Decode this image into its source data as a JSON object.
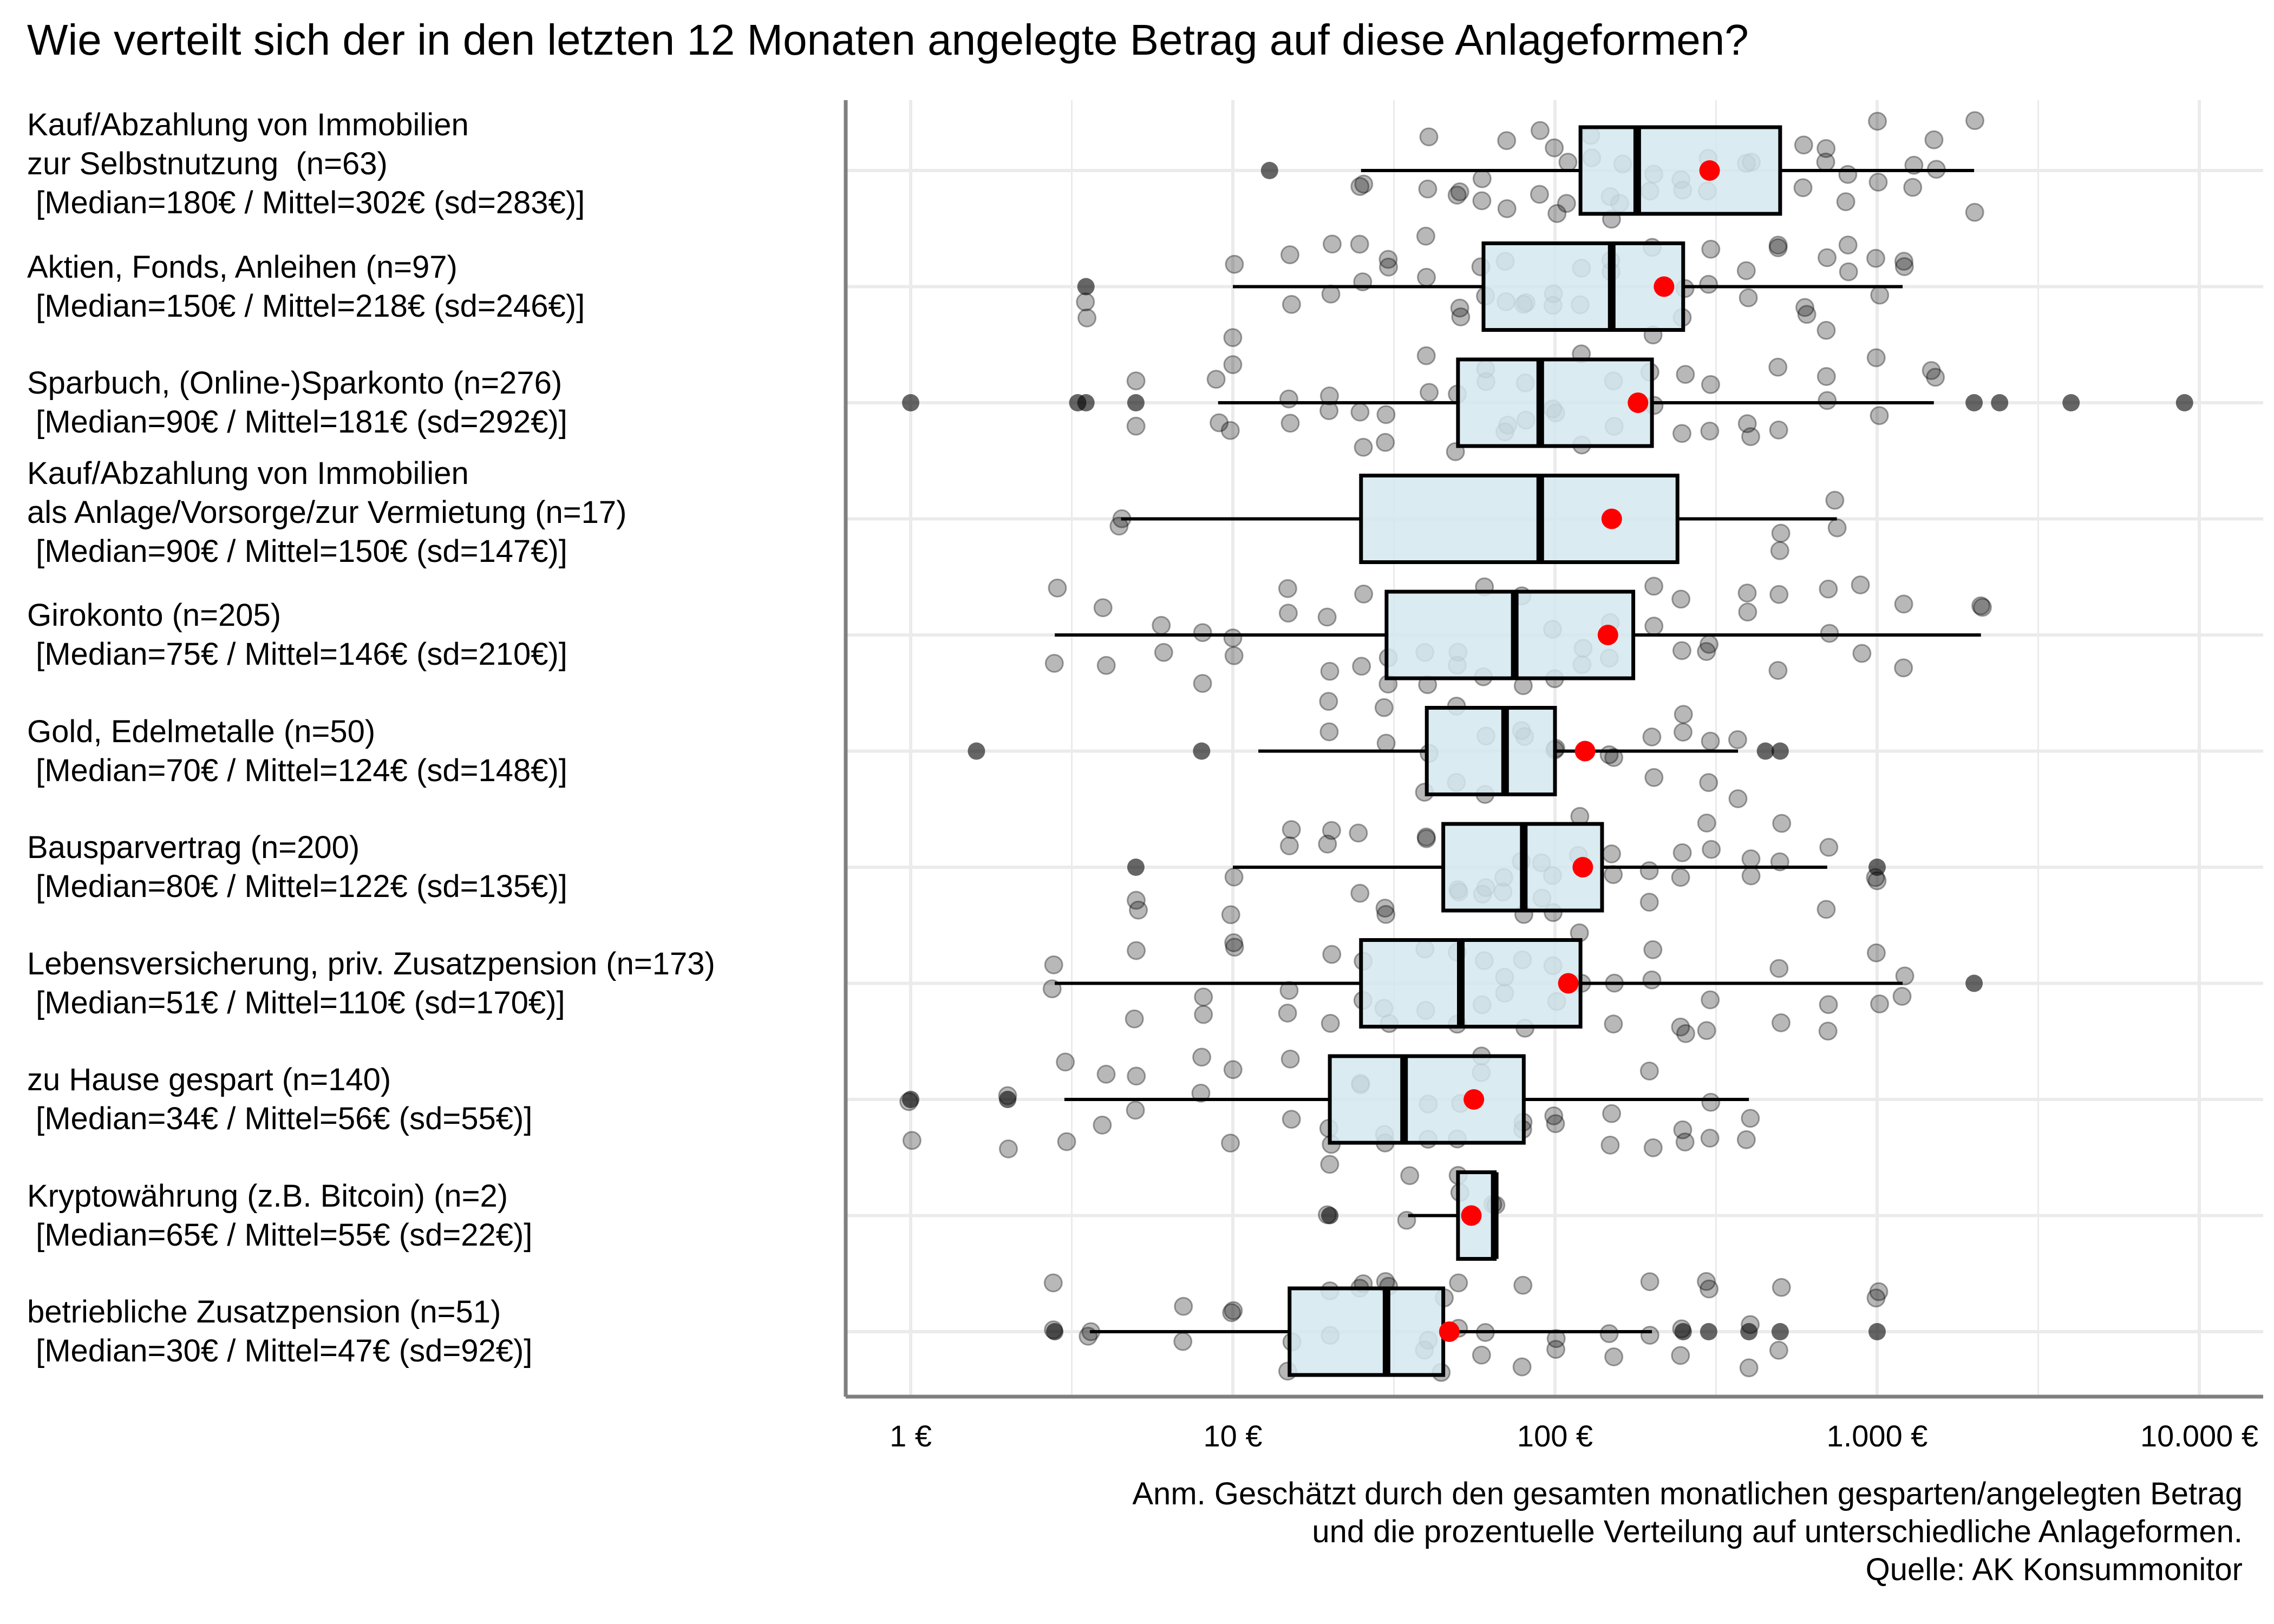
{
  "chart_data": {
    "type": "boxplot",
    "title": "Wie verteilt sich der in den letzten 12 Monaten angelegte Betrag auf diese Anlageformen?",
    "x_scale": "log",
    "x_range": [
      0.7,
      12000
    ],
    "x_ticks": [
      {
        "value": 1,
        "label": "1 €"
      },
      {
        "value": 10,
        "label": "10 €"
      },
      {
        "value": 100,
        "label": "100 €"
      },
      {
        "value": 1000,
        "label": "1.000 €"
      },
      {
        "value": 10000,
        "label": "10.000 €"
      }
    ],
    "grid": true,
    "categories": [
      {
        "label_lines": [
          "Kauf/Abzahlung von Immobilien",
          "zur Selbstnutzung  (n=63)",
          " [Median=180€ / Mittel=302€ (sd=283€)]"
        ],
        "n": 63,
        "median": 180,
        "mean": 302,
        "sd": 283,
        "q1": 120,
        "q3": 500,
        "whisker_low": 25,
        "whisker_high": 2000,
        "outliers": [
          13
        ],
        "points": [
          25,
          40,
          50,
          60,
          70,
          90,
          100,
          110,
          130,
          150,
          160,
          200,
          250,
          300,
          400,
          600,
          700,
          800,
          1000,
          1300,
          1500,
          2000
        ]
      },
      {
        "label_lines": [
          "Aktien, Fonds, Anleihen (n=97)",
          " [Median=150€ / Mittel=218€ (sd=246€)]"
        ],
        "n": 97,
        "median": 150,
        "mean": 218,
        "sd": 246,
        "q1": 60,
        "q3": 250,
        "whisker_low": 10,
        "whisker_high": 1200,
        "outliers": [
          3.5
        ],
        "points": [
          3.5,
          10,
          15,
          20,
          25,
          30,
          40,
          50,
          60,
          70,
          80,
          100,
          120,
          150,
          200,
          250,
          300,
          400,
          500,
          600,
          700,
          800,
          1000,
          1200
        ]
      },
      {
        "label_lines": [
          "Sparbuch, (Online-)Sparkonto (n=276)",
          " [Median=90€ / Mittel=181€ (sd=292€)]"
        ],
        "n": 276,
        "median": 90,
        "mean": 181,
        "sd": 292,
        "q1": 50,
        "q3": 200,
        "whisker_low": 9,
        "whisker_high": 1500,
        "outliers": [
          1,
          3.3,
          3.5,
          5,
          2000,
          2400,
          4000,
          9000
        ],
        "points": [
          5,
          9,
          10,
          15,
          20,
          25,
          30,
          40,
          50,
          60,
          70,
          80,
          100,
          120,
          150,
          200,
          250,
          300,
          400,
          500,
          700,
          1000,
          1500
        ]
      },
      {
        "label_lines": [
          "Kauf/Abzahlung von Immobilien",
          "als Anlage/Vorsorge/zur Vermietung (n=17)",
          " [Median=90€ / Mittel=150€ (sd=147€)]"
        ],
        "n": 17,
        "median": 90,
        "mean": 150,
        "sd": 147,
        "q1": 25,
        "q3": 240,
        "whisker_low": 4.5,
        "whisker_high": 750,
        "outliers": [],
        "points": [
          4.5,
          500,
          750
        ]
      },
      {
        "label_lines": [
          "Girokonto (n=205)",
          " [Median=75€ / Mittel=146€ (sd=210€)]"
        ],
        "n": 205,
        "median": 75,
        "mean": 146,
        "sd": 210,
        "q1": 30,
        "q3": 175,
        "whisker_low": 2.8,
        "whisker_high": 2100,
        "outliers": [],
        "points": [
          2.8,
          4,
          6,
          8,
          10,
          15,
          20,
          25,
          30,
          40,
          50,
          60,
          80,
          100,
          120,
          150,
          200,
          250,
          300,
          400,
          500,
          700,
          900,
          1200,
          2100
        ]
      },
      {
        "label_lines": [
          "Gold, Edelmetalle (n=50)",
          " [Median=70€ / Mittel=124€ (sd=148€)]"
        ],
        "n": 50,
        "median": 70,
        "mean": 124,
        "sd": 148,
        "q1": 40,
        "q3": 100,
        "whisker_low": 12,
        "whisker_high": 370,
        "outliers": [
          1.6,
          8,
          450,
          500
        ],
        "points": [
          20,
          30,
          40,
          50,
          60,
          80,
          100,
          150,
          200,
          250,
          300,
          370
        ]
      },
      {
        "label_lines": [
          "Bausparvertrag (n=200)",
          " [Median=80€ / Mittel=122€ (sd=135€)]"
        ],
        "n": 200,
        "median": 80,
        "mean": 122,
        "sd": 135,
        "q1": 45,
        "q3": 140,
        "whisker_low": 10,
        "whisker_high": 700,
        "outliers": [
          5,
          1000
        ],
        "points": [
          5,
          10,
          15,
          20,
          25,
          30,
          40,
          50,
          60,
          70,
          80,
          90,
          100,
          120,
          150,
          200,
          250,
          300,
          400,
          500,
          700,
          1000
        ]
      },
      {
        "label_lines": [
          "Lebensversicherung, priv. Zusatzpension (n=173)",
          " [Median=51€ / Mittel=110€ (sd=170€)]"
        ],
        "n": 173,
        "median": 51,
        "mean": 110,
        "sd": 170,
        "q1": 25,
        "q3": 120,
        "whisker_low": 2.8,
        "whisker_high": 1200,
        "outliers": [
          2000
        ],
        "points": [
          2.8,
          5,
          8,
          10,
          15,
          20,
          25,
          30,
          40,
          50,
          60,
          70,
          80,
          100,
          120,
          150,
          200,
          250,
          300,
          500,
          700,
          1000,
          1200
        ]
      },
      {
        "label_lines": [
          "zu Hause gespart (n=140)",
          " [Median=34€ / Mittel=56€ (sd=55€)]"
        ],
        "n": 140,
        "median": 34,
        "mean": 56,
        "sd": 55,
        "q1": 20,
        "q3": 80,
        "whisker_low": 3,
        "whisker_high": 400,
        "outliers": [
          1,
          2
        ],
        "points": [
          1,
          2,
          3,
          4,
          5,
          8,
          10,
          15,
          20,
          25,
          30,
          40,
          50,
          60,
          80,
          100,
          150,
          200,
          250,
          300,
          400
        ]
      },
      {
        "label_lines": [
          "Kryptowährung (z.B. Bitcoin) (n=2)",
          " [Median=65€ / Mittel=55€ (sd=22€)]"
        ],
        "n": 2,
        "median": 65,
        "mean": 55,
        "sd": 22,
        "q1": 50,
        "q3": 65,
        "whisker_low": 35,
        "whisker_high": 65,
        "outliers": [
          20
        ],
        "points": [
          20,
          35,
          50,
          65
        ]
      },
      {
        "label_lines": [
          "betriebliche Zusatzpension (n=51)",
          " [Median=30€ / Mittel=47€ (sd=92€)]"
        ],
        "n": 51,
        "median": 30,
        "mean": 47,
        "sd": 92,
        "q1": 15,
        "q3": 45,
        "whisker_low": 3.6,
        "whisker_high": 200,
        "outliers": [
          2.8,
          250,
          300,
          400,
          500,
          1000
        ],
        "points": [
          2.8,
          3.6,
          7,
          10,
          15,
          20,
          25,
          30,
          40,
          45,
          50,
          60,
          80,
          100,
          150,
          200,
          250,
          300,
          400,
          500,
          1000
        ]
      }
    ],
    "note_lines": [
      "Anm. Geschätzt durch den gesamten monatlichen gesparten/angelegten Betrag",
      "und die prozentuelle Verteilung auf unterschiedliche Anlageformen.",
      "Quelle: AK Konsummonitor"
    ],
    "colors": {
      "box_fill": "#d4e8ef",
      "box_stroke": "#000000",
      "mean_point": "#ff0000",
      "jitter_point": "#000000",
      "grid": "#ebebeb",
      "axis": "#7f7f7f"
    }
  }
}
